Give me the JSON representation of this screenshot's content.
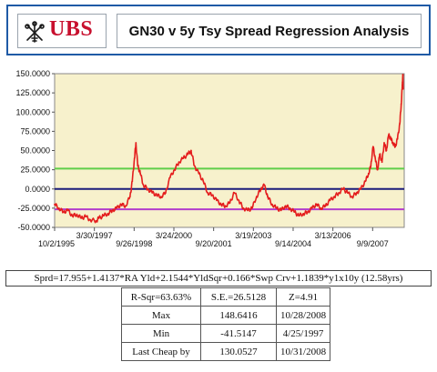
{
  "header": {
    "logo_text": "UBS",
    "title": "GN30 v 5y Tsy Spread Regression Analysis"
  },
  "chart_data": {
    "type": "line",
    "title": "",
    "xlabel": "",
    "ylabel": "",
    "ylim": [
      -50,
      150
    ],
    "xlim": [
      "1995-10-02",
      "2008-11-15"
    ],
    "y_ticks": [
      150,
      125,
      100,
      75,
      50,
      25,
      0,
      -25,
      -50
    ],
    "y_tick_labels": [
      "150.0000",
      "125.0000",
      "100.0000",
      "75.0000",
      "50.0000",
      "25.0000",
      "0.0000",
      "-25.0000",
      "-50.0000"
    ],
    "x_ticks_row1": [
      "1995-10-02",
      "1998-09-26",
      "2001-09-20",
      "2004-09-14",
      "2007-09-09"
    ],
    "x_tick_labels_row1": [
      "10/2/1995",
      "9/26/1998",
      "9/20/2001",
      "9/14/2004",
      "9/9/2007"
    ],
    "x_ticks_row2": [
      "1997-03-30",
      "2000-03-24",
      "2003-03-19",
      "2006-03-13"
    ],
    "x_tick_labels_row2": [
      "3/30/1997",
      "3/24/2000",
      "3/19/2003",
      "3/13/2006"
    ],
    "grid": false,
    "colors": {
      "plot_background": "#f7f1cc",
      "series": "#e41d1d",
      "upper_band": "#5fce4a",
      "zero_line": "#1c1c7a",
      "lower_band": "#b23ccc",
      "brand": "#c8102e"
    },
    "reference_lines": [
      {
        "y": 26.5128,
        "color": "#5fce4a"
      },
      {
        "y": 0,
        "color": "#1c1c7a"
      },
      {
        "y": -26.5128,
        "color": "#b23ccc"
      }
    ],
    "series": [
      {
        "x": [
          "1995-10-02",
          "1995-12-01",
          "1996-02-01",
          "1996-04-01",
          "1996-06-01",
          "1996-08-01",
          "1996-10-01",
          "1996-12-01",
          "1997-02-01",
          "1997-04-25",
          "1997-06-01",
          "1997-08-01",
          "1997-10-01",
          "1997-12-01",
          "1998-02-01",
          "1998-04-01",
          "1998-06-01",
          "1998-08-01",
          "1998-09-01",
          "1998-10-01",
          "1998-10-20",
          "1998-11-15",
          "1998-12-20",
          "1999-02-01",
          "1999-04-01",
          "1999-06-01",
          "1999-08-01",
          "1999-10-01",
          "1999-12-01",
          "2000-02-01",
          "2000-04-01",
          "2000-06-01",
          "2000-08-01",
          "2000-10-01",
          "2000-11-15",
          "2001-01-01",
          "2001-03-01",
          "2001-05-01",
          "2001-07-01",
          "2001-09-01",
          "2001-11-01",
          "2002-01-01",
          "2002-03-01",
          "2002-05-01",
          "2002-07-01",
          "2002-09-01",
          "2002-11-01",
          "2003-01-01",
          "2003-03-01",
          "2003-05-01",
          "2003-07-01",
          "2003-08-15",
          "2003-10-01",
          "2003-12-01",
          "2004-02-01",
          "2004-04-01",
          "2004-06-01",
          "2004-08-01",
          "2004-10-01",
          "2004-12-01",
          "2005-02-01",
          "2005-04-01",
          "2005-06-01",
          "2005-08-01",
          "2005-10-01",
          "2005-12-01",
          "2006-02-01",
          "2006-04-01",
          "2006-06-01",
          "2006-08-01",
          "2006-10-01",
          "2006-12-01",
          "2007-02-01",
          "2007-04-01",
          "2007-06-01",
          "2007-07-15",
          "2007-08-15",
          "2007-09-15",
          "2007-10-15",
          "2007-11-15",
          "2007-12-15",
          "2008-01-15",
          "2008-02-15",
          "2008-03-15",
          "2008-04-15",
          "2008-05-15",
          "2008-06-15",
          "2008-07-15",
          "2008-08-15",
          "2008-09-15",
          "2008-10-05",
          "2008-10-20",
          "2008-10-28",
          "2008-10-31"
        ],
        "values": [
          -20,
          -25,
          -30,
          -28,
          -35,
          -33,
          -38,
          -36,
          -40,
          -41.5,
          -38,
          -35,
          -32,
          -28,
          -25,
          -20,
          -22,
          -10,
          10,
          40,
          60,
          30,
          20,
          5,
          0,
          -5,
          -8,
          -10,
          -5,
          15,
          25,
          35,
          40,
          45,
          50,
          30,
          20,
          10,
          -5,
          -8,
          -15,
          -20,
          -22,
          -18,
          -5,
          -15,
          -25,
          -28,
          -25,
          -10,
          0,
          5,
          -10,
          -20,
          -25,
          -28,
          -22,
          -25,
          -30,
          -35,
          -32,
          -30,
          -25,
          -20,
          -25,
          -22,
          -15,
          -10,
          -5,
          0,
          -5,
          -10,
          -5,
          0,
          10,
          20,
          30,
          55,
          40,
          25,
          45,
          35,
          60,
          50,
          70,
          65,
          60,
          55,
          65,
          85,
          110,
          135,
          148.6,
          130.1
        ]
      }
    ],
    "annotations": []
  },
  "regression": {
    "formula": "Sprd=17.955+1.4137*RA Yld+2.1544*YldSqr+0.166*Swp Crv+1.1839*y1x10y (12.58yrs)",
    "r_sqr": "R-Sqr=63.63%",
    "se": "S.E.=26.5128",
    "z": "Z=4.91",
    "rows": [
      {
        "label": "Max",
        "value": "148.6416",
        "date": "10/28/2008"
      },
      {
        "label": "Min",
        "value": "-41.5147",
        "date": "4/25/1997"
      },
      {
        "label": "Last Cheap by",
        "value": "130.0527",
        "date": "10/31/2008"
      }
    ]
  }
}
